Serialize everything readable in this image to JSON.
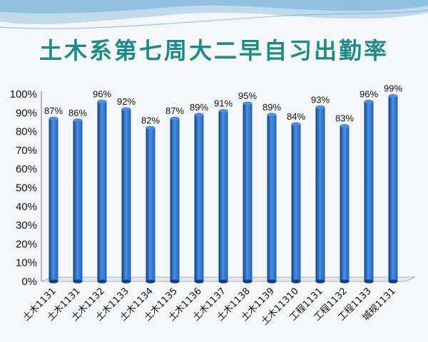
{
  "slide": {
    "title": "土木系第七周大二早自习出勤率"
  },
  "colors": {
    "bar": "#1f62b8",
    "bar_light": "#4a8fe0",
    "bar_dark": "#0f3f84",
    "title": "#1e8a86",
    "wave": "#5fa7d8",
    "background": "#f4f6f8"
  },
  "chart_data": {
    "type": "bar",
    "title": "土木系第七周大二早自习出勤率",
    "categories": [
      "土木1131",
      "土木1131",
      "土木1132",
      "土木1133",
      "土木1134",
      "土木1135",
      "土木1136",
      "土木1137",
      "土木1138",
      "土木1139",
      "土木11310",
      "工程1131",
      "工程1132",
      "工程1133",
      "城规1131"
    ],
    "values": [
      87,
      86,
      96,
      92,
      82,
      87,
      89,
      91,
      95,
      89,
      84,
      93,
      83,
      96,
      99
    ],
    "data_labels": [
      "87%",
      "86%",
      "96%",
      "92%",
      "82%",
      "87%",
      "89%",
      "91%",
      "95%",
      "89%",
      "84%",
      "93%",
      "83%",
      "96%",
      "99%"
    ],
    "yticks": [
      "0%",
      "10%",
      "20%",
      "30%",
      "40%",
      "50%",
      "60%",
      "70%",
      "80%",
      "90%",
      "100%"
    ],
    "ylim": [
      0,
      100
    ],
    "xlabel": "",
    "ylabel": "",
    "grid": false,
    "legend": "none"
  }
}
